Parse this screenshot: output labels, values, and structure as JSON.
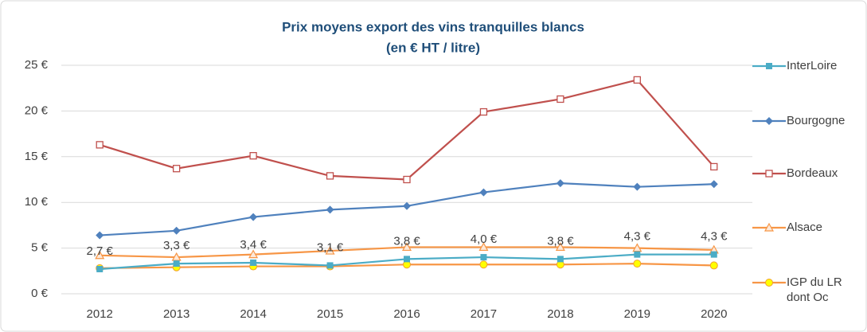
{
  "chart_data": {
    "type": "line",
    "title": "Prix moyens export des vins tranquilles blancs",
    "subtitle": "(en € HT / litre)",
    "categories": [
      "2012",
      "2013",
      "2014",
      "2015",
      "2016",
      "2017",
      "2018",
      "2019",
      "2020"
    ],
    "series": [
      {
        "name": "InterLoire",
        "color": "#4bacc6",
        "marker": "square",
        "values": [
          2.7,
          3.3,
          3.4,
          3.1,
          3.8,
          4.0,
          3.8,
          4.3,
          4.3
        ],
        "value_labels": [
          "2,7 €",
          "3,3 €",
          "3,4 €",
          "3,1 €",
          "3,8 €",
          "4,0 €",
          "3,8 €",
          "4,3 €",
          "4,3 €"
        ]
      },
      {
        "name": "Bourgogne",
        "color": "#4f81bd",
        "marker": "diamond",
        "values": [
          6.4,
          6.9,
          8.4,
          9.2,
          9.6,
          11.1,
          12.1,
          11.7,
          12.0
        ]
      },
      {
        "name": "Bordeaux",
        "color": "#c0504d",
        "marker": "open-square",
        "values": [
          16.3,
          13.7,
          15.1,
          12.9,
          12.5,
          19.9,
          21.3,
          23.4,
          13.9
        ]
      },
      {
        "name": "Alsace",
        "color": "#f79646",
        "marker": "open-triangle",
        "values": [
          4.2,
          4.0,
          4.3,
          4.7,
          5.1,
          5.1,
          5.1,
          5.0,
          4.8
        ]
      },
      {
        "name": "IGP du LR dont Oc",
        "color": "#f79646",
        "marker": "circle",
        "marker_color": "#ffff00",
        "values": [
          2.8,
          2.9,
          3.0,
          3.0,
          3.2,
          3.2,
          3.2,
          3.3,
          3.1
        ]
      }
    ],
    "ylim": [
      0,
      25
    ],
    "yticks": [
      {
        "value": 0,
        "label": "0 €"
      },
      {
        "value": 5,
        "label": "5 €"
      },
      {
        "value": 10,
        "label": "10 €"
      },
      {
        "value": 15,
        "label": "15 €"
      },
      {
        "value": 20,
        "label": "20 €"
      },
      {
        "value": 25,
        "label": "25 €"
      }
    ],
    "grid": true,
    "legend": "right"
  }
}
